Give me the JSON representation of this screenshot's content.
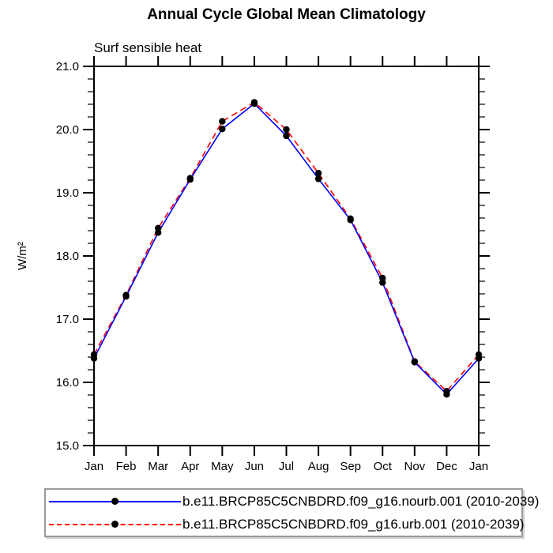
{
  "chart_data": {
    "type": "line",
    "title": "Annual Cycle Global Mean Climatology",
    "subtitle": "Surf sensible heat",
    "ylabel": "W/m²",
    "xlabel": "",
    "x_tick_labels": [
      "Jan",
      "Feb",
      "Mar",
      "Apr",
      "May",
      "Jun",
      "Jul",
      "Aug",
      "Sep",
      "Oct",
      "Nov",
      "Dec",
      "Jan"
    ],
    "ylim": [
      15.0,
      21.0
    ],
    "y_major_step": 1.0,
    "y_minor_step": 0.2,
    "y_tick_labels": [
      "15.0",
      "16.0",
      "17.0",
      "18.0",
      "19.0",
      "20.0",
      "21.0"
    ],
    "grid": false,
    "legend_position": "bottom-left",
    "axis_color": "#000000",
    "marker": "filled-circle",
    "marker_color": "#000000",
    "series": [
      {
        "name": "b.e11.BRCP85C5CNBDRD.f09_g16.nourb.001 (2010-2039)",
        "color": "#0000ff",
        "style": "solid",
        "values": [
          16.38,
          17.36,
          18.37,
          19.21,
          20.01,
          20.41,
          19.9,
          19.22,
          18.57,
          17.58,
          16.32,
          15.81,
          16.38
        ]
      },
      {
        "name": "b.e11.BRCP85C5CNBDRD.f09_g16.urb.001 (2010-2039)",
        "color": "#ff0000",
        "style": "dashed",
        "values": [
          16.44,
          17.38,
          18.44,
          19.23,
          20.13,
          20.43,
          20.0,
          19.31,
          18.59,
          17.65,
          16.33,
          15.86,
          16.44
        ]
      }
    ]
  }
}
